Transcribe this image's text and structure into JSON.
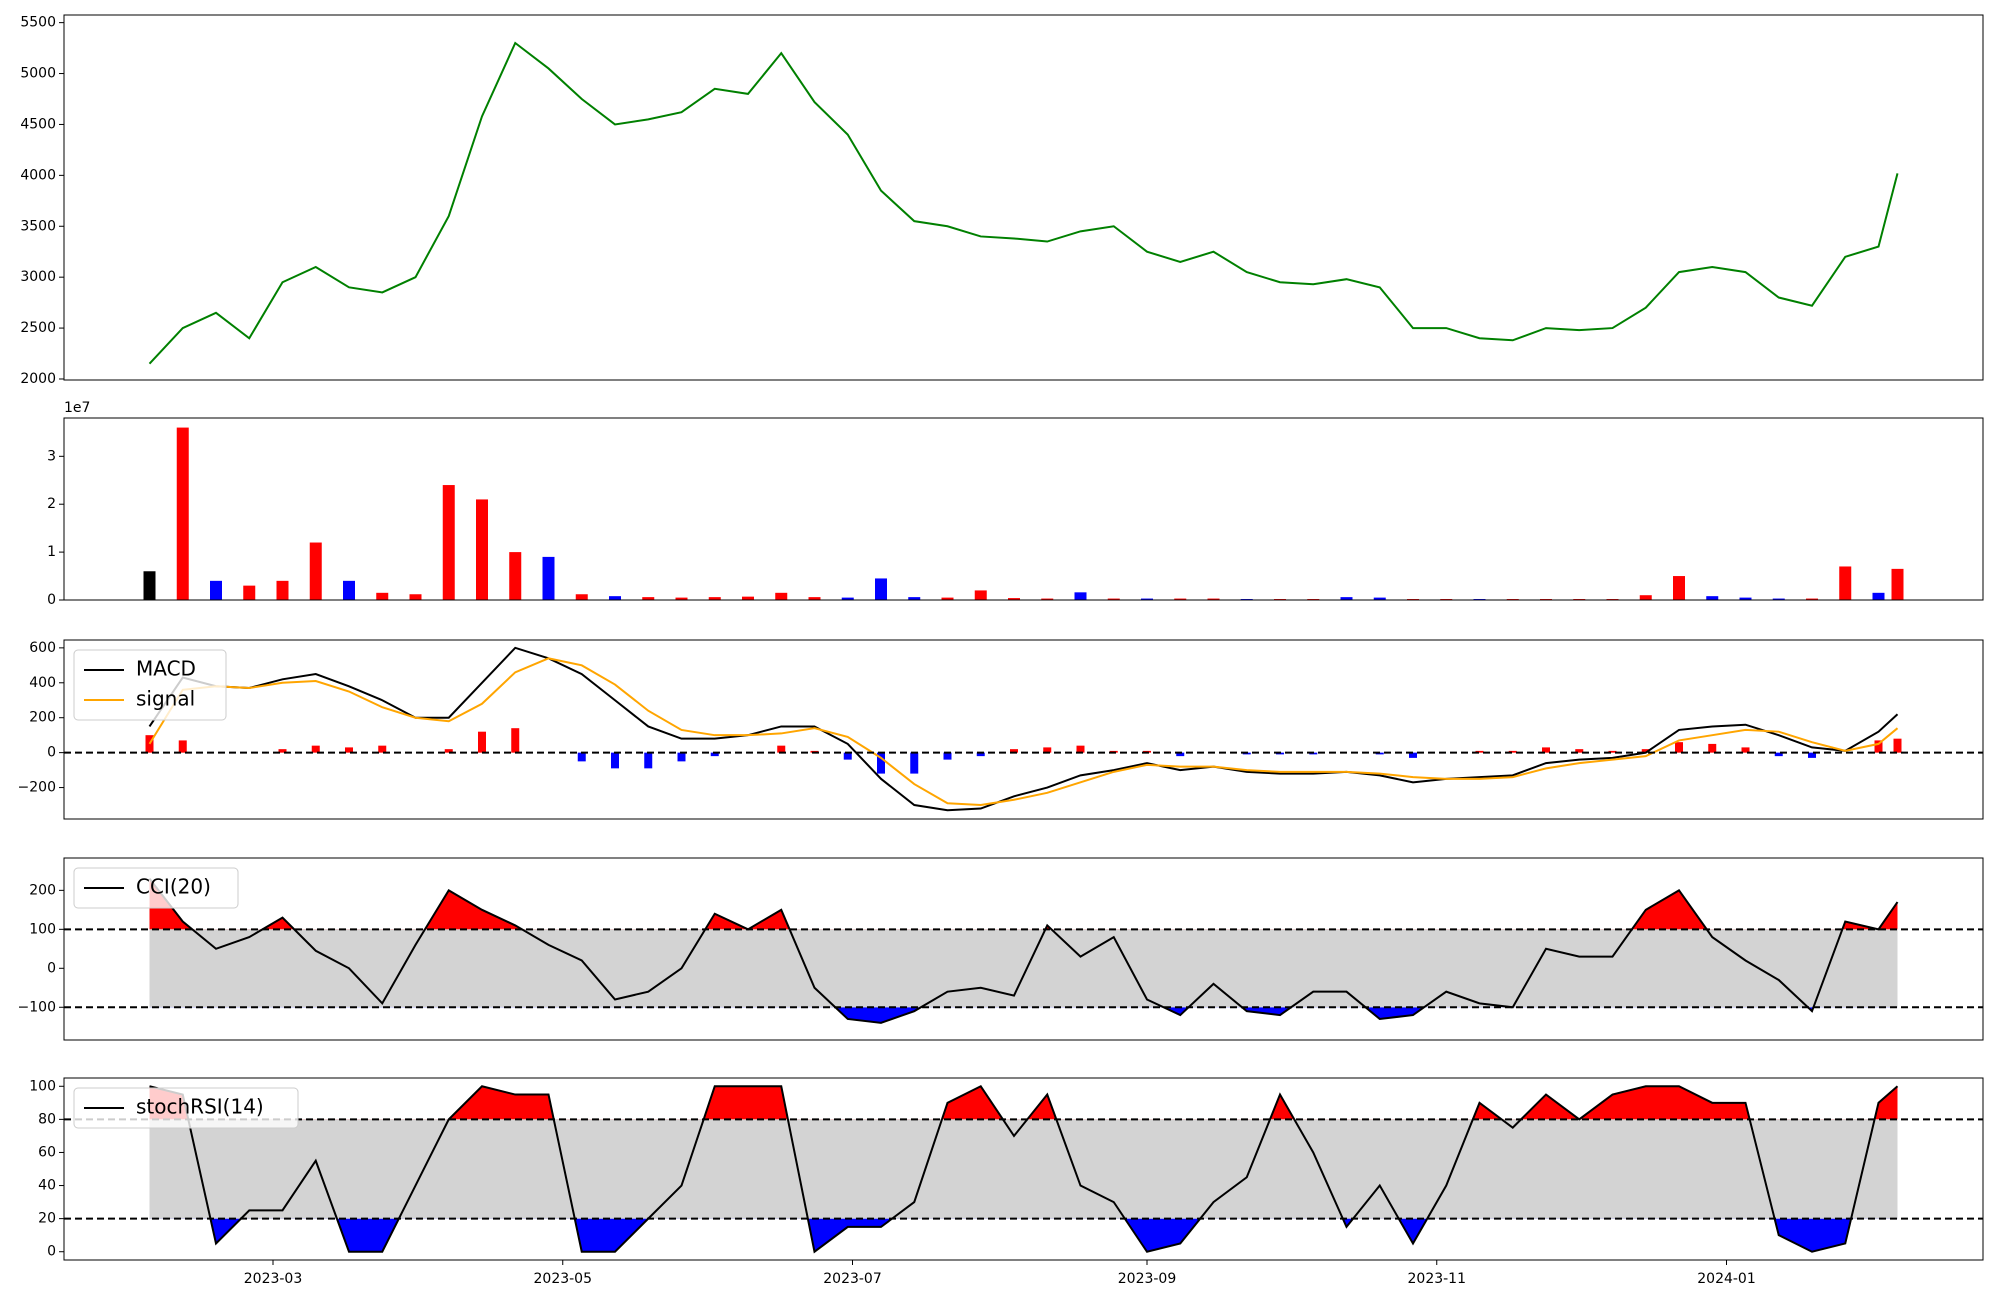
{
  "chart_data": [
    {
      "type": "line",
      "x": [
        "2023-02-03",
        "2023-02-10",
        "2023-02-17",
        "2023-02-24",
        "2023-03-03",
        "2023-03-10",
        "2023-03-17",
        "2023-03-24",
        "2023-03-31",
        "2023-04-07",
        "2023-04-14",
        "2023-04-21",
        "2023-04-28",
        "2023-05-05",
        "2023-05-12",
        "2023-05-19",
        "2023-05-26",
        "2023-06-02",
        "2023-06-09",
        "2023-06-16",
        "2023-06-23",
        "2023-06-30",
        "2023-07-07",
        "2023-07-14",
        "2023-07-21",
        "2023-07-28",
        "2023-08-04",
        "2023-08-11",
        "2023-08-18",
        "2023-08-25",
        "2023-09-01",
        "2023-09-08",
        "2023-09-15",
        "2023-09-22",
        "2023-09-29",
        "2023-10-06",
        "2023-10-13",
        "2023-10-20",
        "2023-10-27",
        "2023-11-03",
        "2023-11-10",
        "2023-11-17",
        "2023-11-24",
        "2023-12-01",
        "2023-12-08",
        "2023-12-15",
        "2023-12-22",
        "2023-12-29",
        "2024-01-05",
        "2024-01-12",
        "2024-01-19",
        "2024-01-26",
        "2024-02-02",
        "2024-02-06"
      ],
      "xlim": [
        "2023-01-16",
        "2024-02-24"
      ],
      "series": [
        {
          "color": "green",
          "values": [
            2150,
            2500,
            2650,
            2400,
            2950,
            3100,
            2900,
            2850,
            3000,
            3600,
            4580,
            5300,
            5050,
            4750,
            4500,
            4550,
            4620,
            4850,
            4800,
            5200,
            4720,
            4400,
            3850,
            3550,
            3500,
            3400,
            3380,
            3350,
            3450,
            3500,
            3250,
            3150,
            3250,
            3050,
            2950,
            2930,
            2980,
            2900,
            2500,
            2500,
            2400,
            2380,
            2500,
            2480,
            2500,
            2700,
            3050,
            3100,
            3050,
            2800,
            2720,
            3200,
            3300,
            4020
          ]
        }
      ],
      "ylim": [
        1990,
        5575
      ],
      "yticks": [
        2000,
        2500,
        3000,
        3500,
        4000,
        4500,
        5000,
        5500
      ]
    },
    {
      "type": "bar",
      "offset_label": "1e7",
      "values": [
        6000000,
        36000000,
        4000000,
        3000000,
        4000000,
        12000000,
        4000000,
        1500000,
        1200000,
        24000000,
        21000000,
        10000000,
        9000000,
        1200000,
        800000,
        600000,
        500000,
        600000,
        700000,
        1500000,
        600000,
        500000,
        4500000,
        600000,
        500000,
        2000000,
        400000,
        300000,
        1600000,
        300000,
        300000,
        300000,
        300000,
        200000,
        200000,
        200000,
        600000,
        500000,
        200000,
        200000,
        200000,
        200000,
        200000,
        200000,
        200000,
        1000000,
        5000000,
        800000,
        500000,
        300000,
        300000,
        7000000,
        1500000,
        6500000
      ],
      "colors": [
        "black",
        "red",
        "blue",
        "red",
        "red",
        "red",
        "blue",
        "red",
        "red",
        "red",
        "red",
        "red",
        "blue",
        "red",
        "blue",
        "red",
        "red",
        "red",
        "red",
        "red",
        "red",
        "blue",
        "blue",
        "blue",
        "red",
        "red",
        "red",
        "red",
        "blue",
        "red",
        "blue",
        "red",
        "red",
        "blue",
        "red",
        "red",
        "blue",
        "blue",
        "red",
        "red",
        "blue",
        "red",
        "red",
        "red",
        "red",
        "red",
        "red",
        "blue",
        "blue",
        "blue",
        "red",
        "red",
        "blue",
        "red"
      ],
      "ylim": [
        0,
        38000000
      ],
      "yticks": [
        0,
        {
          "value": 10000000,
          "label": "1"
        },
        {
          "value": 20000000,
          "label": "2"
        },
        {
          "value": 30000000,
          "label": "3"
        }
      ]
    },
    {
      "type": "line",
      "legend": "upper left",
      "hlines": [
        0
      ],
      "series": [
        {
          "name": "MACD",
          "color": "black",
          "values": [
            150,
            430,
            380,
            370,
            420,
            450,
            380,
            300,
            200,
            200,
            400,
            600,
            540,
            450,
            300,
            150,
            80,
            80,
            100,
            150,
            150,
            50,
            -150,
            -300,
            -330,
            -320,
            -250,
            -200,
            -130,
            -100,
            -60,
            -100,
            -80,
            -110,
            -120,
            -120,
            -110,
            -130,
            -170,
            -150,
            -140,
            -130,
            -60,
            -40,
            -30,
            0,
            130,
            150,
            160,
            100,
            30,
            10,
            120,
            220
          ]
        },
        {
          "name": "signal",
          "color": "orange",
          "values": [
            50,
            360,
            380,
            370,
            400,
            410,
            350,
            260,
            200,
            180,
            280,
            460,
            540,
            500,
            390,
            240,
            130,
            100,
            100,
            110,
            140,
            90,
            -30,
            -180,
            -290,
            -300,
            -270,
            -230,
            -170,
            -110,
            -70,
            -80,
            -80,
            -100,
            -110,
            -110,
            -110,
            -120,
            -140,
            -150,
            -150,
            -140,
            -90,
            -60,
            -40,
            -20,
            70,
            100,
            130,
            120,
            60,
            10,
            50,
            140
          ]
        }
      ],
      "histogram": {
        "pos_color": "red",
        "neg_color": "blue",
        "values": [
          100,
          70,
          0,
          0,
          20,
          40,
          30,
          40,
          0,
          20,
          120,
          140,
          0,
          -50,
          -90,
          -90,
          -50,
          -20,
          0,
          40,
          10,
          -40,
          -120,
          -120,
          -40,
          -20,
          20,
          30,
          40,
          10,
          10,
          -20,
          0,
          -10,
          -10,
          -10,
          0,
          -10,
          -30,
          0,
          10,
          10,
          30,
          20,
          10,
          20,
          60,
          50,
          30,
          -20,
          -30,
          0,
          70,
          80
        ]
      },
      "ylim": [
        -380,
        645
      ],
      "yticks": [
        {
          "value": -200,
          "label": "−200"
        },
        0,
        200,
        400,
        600
      ]
    },
    {
      "type": "line",
      "legend": "upper left",
      "hlines": [
        -100,
        100
      ],
      "fill_colors": {
        "above": "red",
        "below": "blue",
        "between": "lightgray"
      },
      "series": [
        {
          "name": "CCI(20)",
          "color": "black",
          "values": [
            230,
            120,
            50,
            80,
            130,
            45,
            0,
            -90,
            60,
            200,
            150,
            110,
            60,
            20,
            -80,
            -60,
            0,
            140,
            100,
            150,
            -50,
            -130,
            -140,
            -110,
            -60,
            -50,
            -70,
            110,
            30,
            80,
            -80,
            -120,
            -40,
            -110,
            -120,
            -60,
            -60,
            -130,
            -120,
            -60,
            -90,
            -100,
            50,
            30,
            30,
            150,
            200,
            80,
            20,
            -30,
            -110,
            120,
            100,
            170
          ]
        }
      ],
      "ylim": [
        -184,
        283
      ],
      "yticks": [
        {
          "value": -100,
          "label": "−100"
        },
        0,
        100,
        200
      ]
    },
    {
      "type": "line",
      "legend": "upper left",
      "hlines": [
        20,
        80
      ],
      "fill_colors": {
        "above": "red",
        "below": "blue",
        "between": "lightgray"
      },
      "series": [
        {
          "name": "stochRSI(14)",
          "color": "black",
          "values": [
            100,
            95,
            5,
            25,
            25,
            55,
            0,
            0,
            40,
            80,
            100,
            95,
            95,
            0,
            0,
            20,
            40,
            100,
            100,
            100,
            0,
            15,
            15,
            30,
            90,
            100,
            70,
            95,
            40,
            30,
            0,
            5,
            30,
            45,
            95,
            60,
            15,
            40,
            5,
            40,
            90,
            75,
            95,
            80,
            95,
            100,
            100,
            90,
            90,
            10,
            0,
            5,
            90,
            100
          ]
        }
      ],
      "ylim": [
        -5,
        105
      ],
      "yticks": [
        0,
        20,
        40,
        60,
        80,
        100
      ],
      "xticks": [
        {
          "value": "2023-03-01",
          "label": "2023-03"
        },
        {
          "value": "2023-05-01",
          "label": "2023-05"
        },
        {
          "value": "2023-07-01",
          "label": "2023-07"
        },
        {
          "value": "2023-09-01",
          "label": "2023-09"
        },
        {
          "value": "2023-11-01",
          "label": "2023-11"
        },
        {
          "value": "2024-01-01",
          "label": "2024-01"
        }
      ]
    }
  ]
}
